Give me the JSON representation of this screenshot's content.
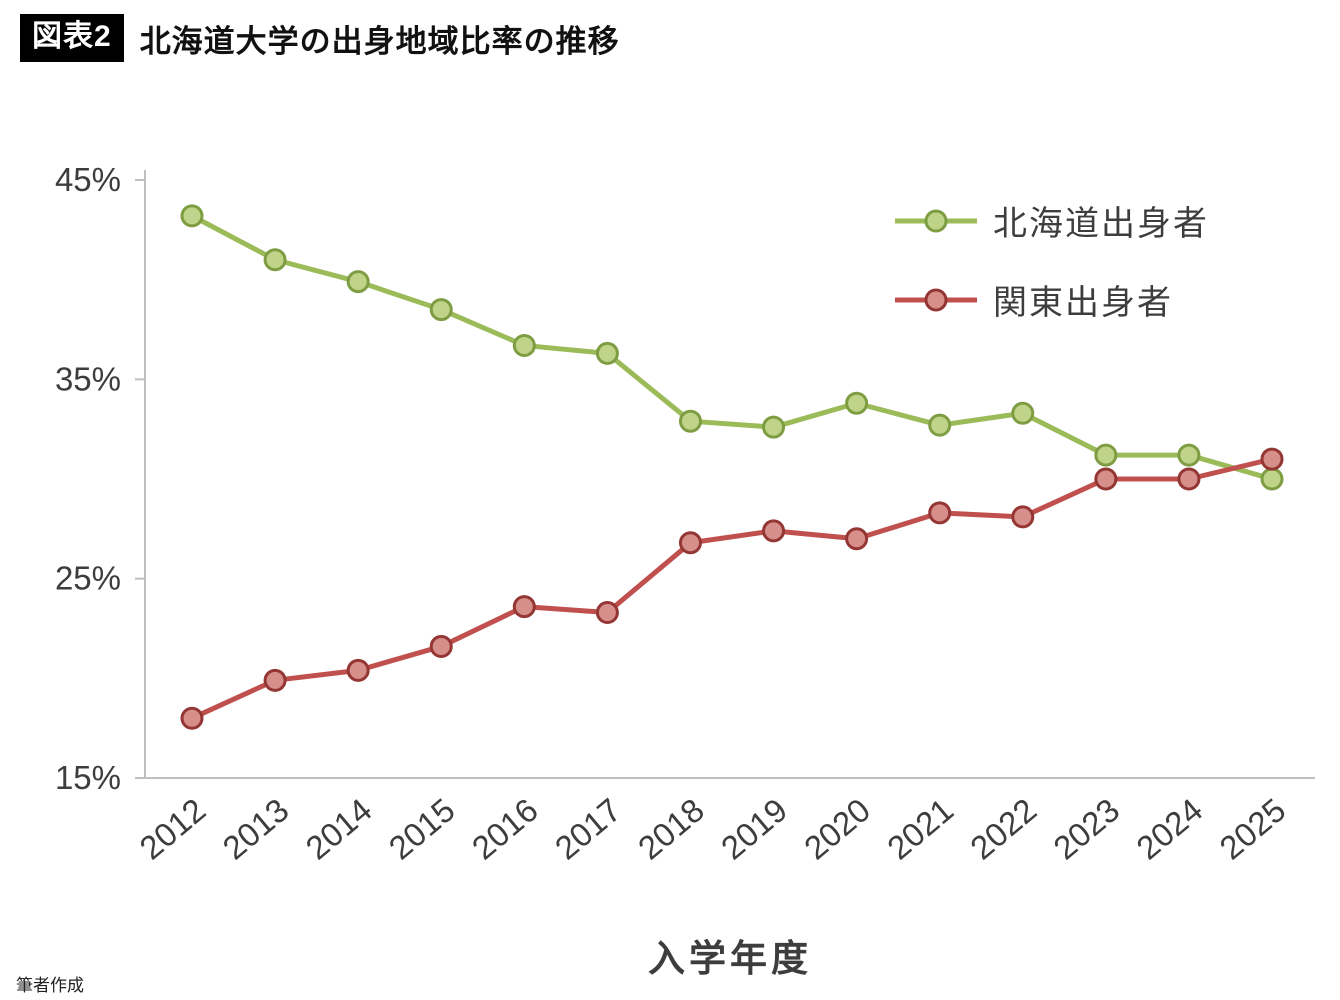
{
  "header": {
    "badge": "図表2",
    "title": "北海道大学の出身地域比率の推移"
  },
  "footer": {
    "note": "筆者作成"
  },
  "chart_data": {
    "type": "line",
    "title": "北海道大学の出身地域比率の推移",
    "xlabel": "入学年度",
    "ylabel": "",
    "ylim": [
      15,
      45
    ],
    "yticks": [
      45,
      35,
      25,
      15
    ],
    "ytick_suffix": "%",
    "grid": false,
    "legend_position": "top-right",
    "axis_color": "#bfbfbf",
    "label_color": "#3d3d3d",
    "categories": [
      "2012",
      "2013",
      "2014",
      "2015",
      "2016",
      "2017",
      "2018",
      "2019",
      "2020",
      "2021",
      "2022",
      "2023",
      "2024",
      "2025"
    ],
    "series": [
      {
        "name": "北海道出身者",
        "color": "#9bbb59",
        "marker_fill": "#c0d489",
        "marker_stroke": "#7e9d43",
        "values": [
          43.2,
          41.0,
          39.9,
          38.5,
          36.7,
          36.3,
          32.9,
          32.6,
          33.8,
          32.7,
          33.3,
          31.2,
          31.2,
          30.0
        ]
      },
      {
        "name": "関東出身者",
        "color": "#c0504d",
        "marker_fill": "#d78f8c",
        "marker_stroke": "#943634",
        "values": [
          18.0,
          19.9,
          20.4,
          21.6,
          23.6,
          23.3,
          26.8,
          27.4,
          27.0,
          28.3,
          28.1,
          30.0,
          30.0,
          31.0
        ]
      }
    ]
  }
}
